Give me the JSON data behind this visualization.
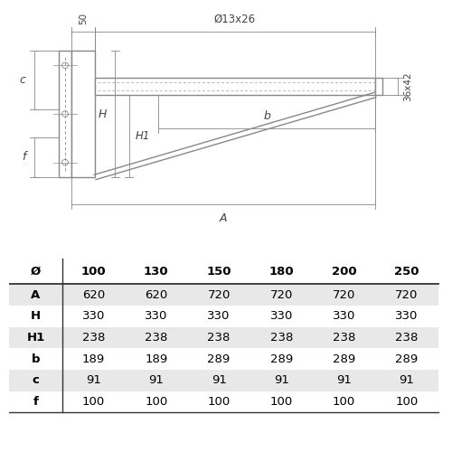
{
  "table_headers": [
    "Ø",
    "100",
    "130",
    "150",
    "180",
    "200",
    "250"
  ],
  "table_rows": [
    [
      "A",
      "620",
      "620",
      "720",
      "720",
      "720",
      "720"
    ],
    [
      "H",
      "330",
      "330",
      "330",
      "330",
      "330",
      "330"
    ],
    [
      "H1",
      "238",
      "238",
      "238",
      "238",
      "238",
      "238"
    ],
    [
      "b",
      "189",
      "189",
      "289",
      "289",
      "289",
      "289"
    ],
    [
      "c",
      "91",
      "91",
      "91",
      "91",
      "91",
      "91"
    ],
    [
      "f",
      "100",
      "100",
      "100",
      "100",
      "100",
      "100"
    ]
  ],
  "shaded_rows": [
    0,
    2,
    4
  ],
  "shade_color": "#e8e8e8",
  "line_color": "#888888",
  "bg_color": "#ffffff",
  "annotation_50": "50",
  "annotation_hole": "Ø13x26",
  "annotation_36x42": "36x42",
  "annotation_A": "A",
  "annotation_b": "b",
  "annotation_H": "H",
  "annotation_H1": "H1",
  "annotation_c": "c",
  "annotation_f": "f"
}
